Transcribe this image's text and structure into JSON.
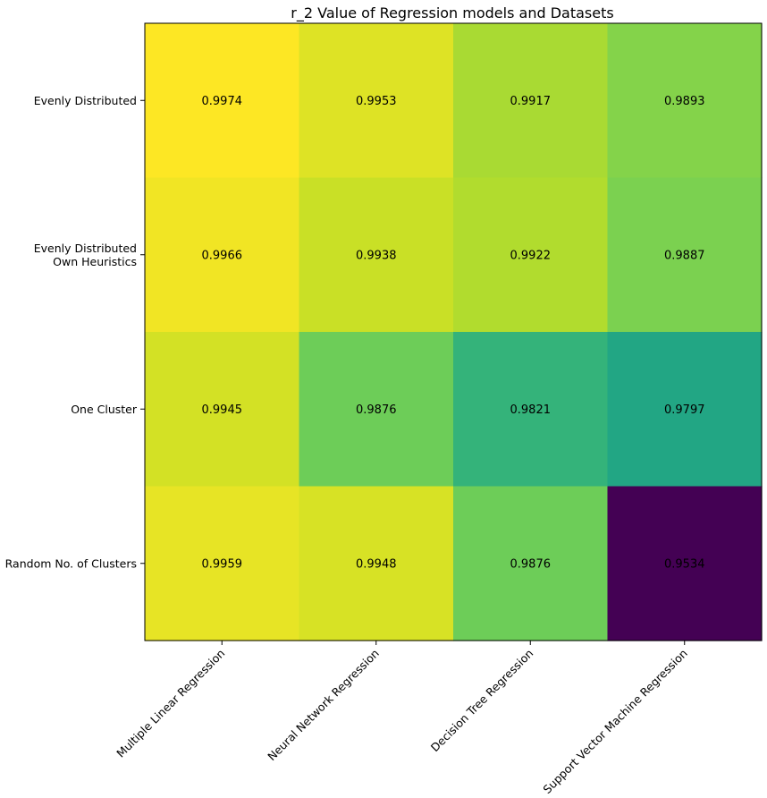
{
  "chart_data": {
    "type": "heatmap",
    "title": "r_2 Value of Regression models and Datasets",
    "xlabel": "",
    "ylabel": "",
    "x_categories": [
      "Multiple Linear Regression",
      "Neural Network Regression",
      "Decision Tree Regression",
      "Support Vector Machine Regression"
    ],
    "y_categories": [
      [
        "Evenly Distributed"
      ],
      [
        "Evenly Distributed",
        "Own Heuristics"
      ],
      [
        "One Cluster"
      ],
      [
        "Random No. of Clusters"
      ]
    ],
    "values": [
      [
        0.9974,
        0.9953,
        0.9917,
        0.9893
      ],
      [
        0.9966,
        0.9938,
        0.9922,
        0.9887
      ],
      [
        0.9945,
        0.9876,
        0.9821,
        0.9797
      ],
      [
        0.9959,
        0.9948,
        0.9876,
        0.9534
      ]
    ],
    "value_labels": [
      [
        "0.9974",
        "0.9953",
        "0.9917",
        "0.9893"
      ],
      [
        "0.9966",
        "0.9938",
        "0.9922",
        "0.9887"
      ],
      [
        "0.9945",
        "0.9876",
        "0.9821",
        "0.9797"
      ],
      [
        "0.9959",
        "0.9948",
        "0.9876",
        "0.9534"
      ]
    ],
    "colormap": "viridis",
    "vmin": 0.9534,
    "vmax": 0.9974,
    "cell_text_color": "#000000",
    "grid": false,
    "legend": "none"
  }
}
